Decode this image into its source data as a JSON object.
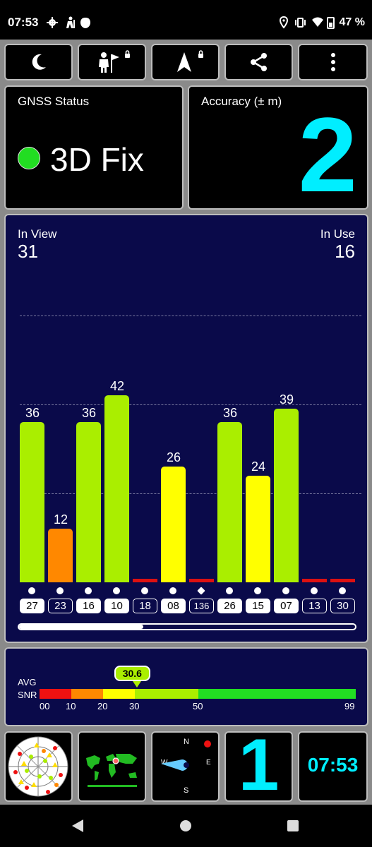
{
  "status_bar": {
    "time": "07:53",
    "battery": "47 %",
    "icons": [
      "gear-icon",
      "hiker-icon",
      "shield-icon",
      "location-icon",
      "vibrate-icon",
      "wifi-icon",
      "battery-icon"
    ]
  },
  "toolbar": {
    "buttons": [
      "night-mode-icon",
      "hiker-flag-icon",
      "navigation-arrow-icon",
      "share-icon",
      "more-vert-icon"
    ]
  },
  "gnss": {
    "title": "GNSS Status",
    "status": "3D Fix",
    "status_color": "#22dd22"
  },
  "accuracy": {
    "title": "Accuracy (± m)",
    "value": "2",
    "value_color": "#00eeff"
  },
  "satellites": {
    "in_view_label": "In View",
    "in_view": "31",
    "in_use_label": "In Use",
    "in_use": "16"
  },
  "chart_data": {
    "type": "bar",
    "categories": [
      "27",
      "23",
      "16",
      "10",
      "18",
      "08",
      "136",
      "26",
      "15",
      "07",
      "13",
      "30"
    ],
    "values": [
      36,
      12,
      36,
      42,
      0,
      26,
      0,
      36,
      24,
      39,
      0,
      0
    ],
    "labels": [
      "36",
      "12",
      "36",
      "42",
      "",
      "26",
      "",
      "36",
      "24",
      "39",
      "",
      ""
    ],
    "used": [
      true,
      false,
      true,
      true,
      false,
      true,
      false,
      true,
      true,
      true,
      false,
      false
    ],
    "colors": [
      "#aaee00",
      "#ff8800",
      "#aaee00",
      "#aaee00",
      "#dd1111",
      "#ffff00",
      "#dd1111",
      "#aaee00",
      "#ffff00",
      "#aaee00",
      "#dd1111",
      "#dd1111"
    ],
    "markers": [
      "circle",
      "circle",
      "circle",
      "circle",
      "circle",
      "circle",
      "diamond",
      "circle",
      "circle",
      "circle",
      "circle",
      "circle"
    ],
    "ylim": [
      0,
      60
    ],
    "grid": true
  },
  "snr": {
    "avg_label": "AVG",
    "snr_label": "SNR",
    "avg_value": "30.6",
    "avg": 30.6,
    "ticks": [
      "00",
      "10",
      "20",
      "30",
      "50",
      "99"
    ],
    "colors": {
      "red": "#ee1111",
      "orange": "#ff8800",
      "yellow": "#ffff00",
      "lime": "#aaee00",
      "green": "#22dd22"
    }
  },
  "bottom": {
    "compass": {
      "n": "N",
      "e": "E",
      "s": "S",
      "w": "W"
    },
    "big_number": "1",
    "time": "07:53",
    "accent": "#00eeff"
  }
}
